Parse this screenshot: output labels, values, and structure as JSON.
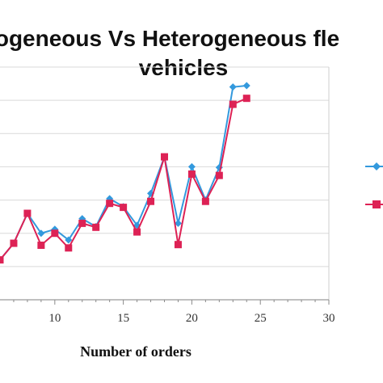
{
  "chart_data": {
    "type": "line",
    "title_line1": "ogeneous Vs Heterogeneous fle",
    "title_line2": "vehicles",
    "xlabel": "Number of orders",
    "ylabel": "",
    "xlim": [
      6,
      30
    ],
    "ylim": [
      0,
      350
    ],
    "xticks": [
      10,
      15,
      20,
      25,
      30
    ],
    "x_tick_labels": [
      "10",
      "15",
      "20",
      "25",
      "30"
    ],
    "grid": true,
    "legend_position": "right",
    "series": [
      {
        "color": "#3399dd",
        "marker": "diamond",
        "x": [
          6,
          7,
          8,
          9,
          10,
          11,
          12,
          13,
          14,
          15,
          16,
          17,
          18,
          19,
          20,
          21,
          22,
          23,
          24
        ],
        "y": [
          60,
          85,
          130,
          100,
          106,
          90,
          122,
          110,
          152,
          140,
          112,
          160,
          215,
          115,
          200,
          150,
          199,
          320,
          322
        ]
      },
      {
        "color": "#dd2255",
        "marker": "square",
        "x": [
          6,
          7,
          8,
          9,
          10,
          11,
          12,
          13,
          14,
          15,
          16,
          17,
          18,
          19,
          20,
          21,
          22,
          23,
          24
        ],
        "y": [
          60,
          85,
          130,
          82,
          100,
          78,
          115,
          109,
          145,
          139,
          102,
          148,
          215,
          83,
          189,
          148,
          187,
          294,
          303
        ]
      }
    ]
  }
}
